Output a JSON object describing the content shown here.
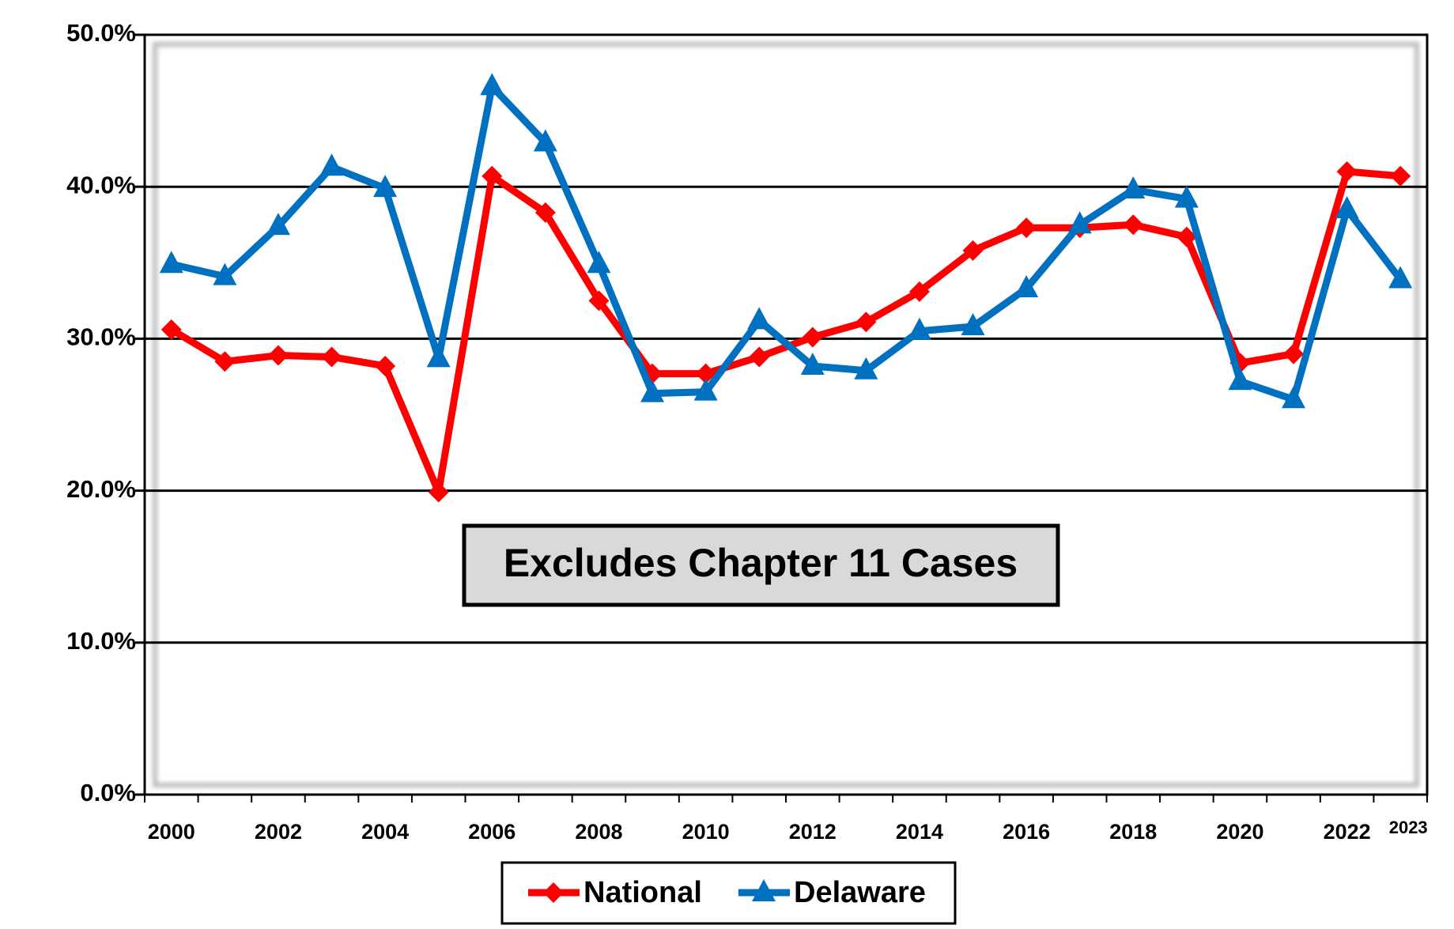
{
  "chart_data": {
    "type": "line",
    "annotation": "Excludes Chapter 11 Cases",
    "categories": [
      "2000",
      null,
      "2002",
      null,
      "2004",
      null,
      "2006",
      null,
      "2008",
      null,
      "2010",
      null,
      "2012",
      null,
      "2014",
      null,
      "2016",
      null,
      "2018",
      null,
      "2020",
      null,
      "2022",
      "2023"
    ],
    "series": [
      {
        "name": "National",
        "color": "#ff0000",
        "marker": "diamond",
        "values": [
          30.6,
          28.5,
          28.9,
          28.8,
          28.2,
          19.9,
          40.7,
          38.3,
          32.5,
          27.7,
          27.7,
          28.8,
          30.1,
          31.1,
          33.1,
          35.8,
          37.3,
          37.3,
          37.5,
          36.7,
          28.4,
          29.0,
          41.0,
          40.7
        ]
      },
      {
        "name": "Delaware",
        "color": "#0070c0",
        "marker": "triangle",
        "values": [
          34.9,
          34.1,
          37.4,
          41.3,
          39.9,
          28.7,
          46.6,
          42.9,
          34.9,
          26.4,
          26.5,
          31.2,
          28.2,
          27.9,
          30.5,
          30.8,
          33.3,
          37.5,
          39.8,
          39.2,
          27.2,
          26.0,
          38.5,
          33.9
        ]
      }
    ],
    "ylim": [
      0,
      50
    ],
    "yticks": [
      {
        "value": 0,
        "label": "0.0%"
      },
      {
        "value": 10,
        "label": "10.0%"
      },
      {
        "value": 20,
        "label": "20.0%"
      },
      {
        "value": 30,
        "label": "30.0%"
      },
      {
        "value": 40,
        "label": "40.0%"
      },
      {
        "value": 50,
        "label": "50.0%"
      }
    ],
    "grid": true,
    "legend": "bottom"
  }
}
